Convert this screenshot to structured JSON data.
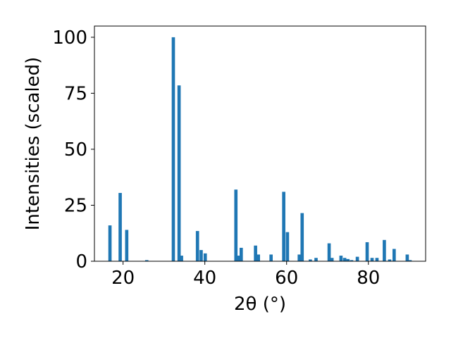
{
  "chart_data": {
    "type": "bar",
    "xlabel": "2θ (°)",
    "ylabel": "Intensities (scaled)",
    "xlim": [
      13,
      94
    ],
    "ylim": [
      0,
      105
    ],
    "x_ticks": [
      20,
      40,
      60,
      80
    ],
    "y_ticks": [
      0,
      25,
      50,
      75,
      100
    ],
    "bar_color": "#1f77b4",
    "bar_width": 0.8,
    "grid": false,
    "legend": "none",
    "x": [
      16.8,
      19.3,
      20.9,
      25.8,
      32.3,
      33.7,
      34.3,
      38.2,
      39.1,
      40.1,
      47.6,
      48.2,
      48.9,
      52.4,
      53.1,
      56.2,
      59.3,
      60.2,
      63.1,
      63.8,
      65.8,
      67.2,
      70.4,
      71.1,
      73.3,
      74.2,
      75.0,
      75.9,
      77.3,
      79.7,
      80.9,
      82.1,
      83.9,
      85.2,
      86.3,
      89.5,
      90.2
    ],
    "values": [
      16,
      30.5,
      14,
      0.5,
      100,
      78.5,
      2.5,
      13.5,
      5,
      3.5,
      32,
      2.5,
      6,
      7,
      3,
      3,
      31,
      13,
      3,
      21.5,
      0.8,
      1.5,
      8,
      1.5,
      2.5,
      1.5,
      1,
      0.5,
      2,
      8.5,
      1.5,
      1.5,
      9.5,
      0.8,
      5.5,
      3,
      0.5
    ]
  }
}
